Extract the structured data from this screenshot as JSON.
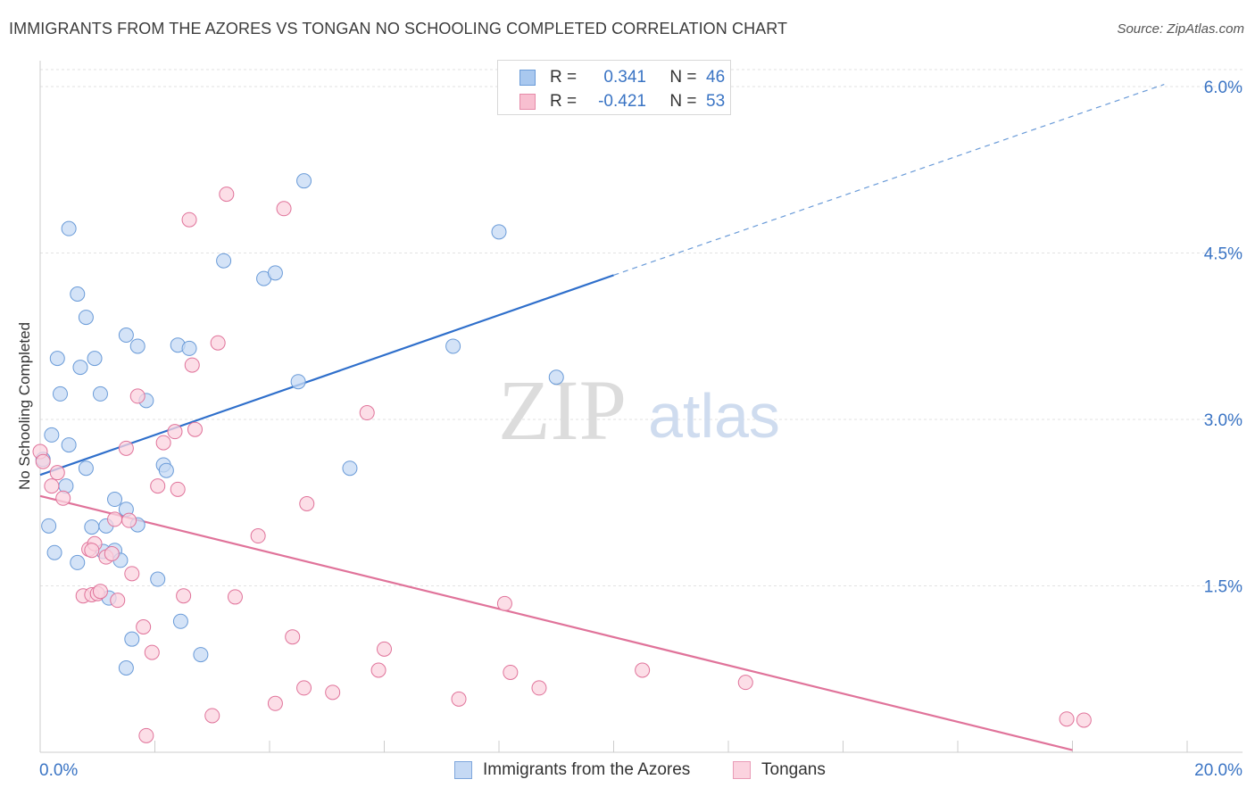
{
  "title": "IMMIGRANTS FROM THE AZORES VS TONGAN NO SCHOOLING COMPLETED CORRELATION CHART",
  "source": "Source: ZipAtlas.com",
  "watermark": {
    "zip": "ZIP",
    "atlas": "atlas"
  },
  "legend": {
    "series": [
      {
        "r_label": "R =",
        "r_value": "0.341",
        "n_label": "N =",
        "n_value": "46",
        "color": "#a9c8ef",
        "border": "#6a9bd8"
      },
      {
        "r_label": "R =",
        "r_value": "-0.421",
        "n_label": "N =",
        "n_value": "53",
        "color": "#f8bfd0",
        "border": "#e68aa8"
      }
    ]
  },
  "bottom_legend": [
    {
      "label": "Immigrants from the Azores",
      "color": "#c5d9f4",
      "border": "#7ea6dc"
    },
    {
      "label": "Tongans",
      "color": "#fbd3df",
      "border": "#e99bb6"
    }
  ],
  "chart_data": {
    "type": "scatter",
    "title": "IMMIGRANTS FROM THE AZORES VS TONGAN NO SCHOOLING COMPLETED CORRELATION CHART",
    "xlabel": "",
    "ylabel": "No Schooling Completed",
    "xlim": [
      0,
      20
    ],
    "ylim": [
      0,
      6.3
    ],
    "x_tick_labels": [
      "0.0%",
      "20.0%"
    ],
    "y_ticks": [
      1.5,
      3.0,
      4.5,
      6.0
    ],
    "y_tick_labels": [
      "1.5%",
      "3.0%",
      "4.5%",
      "6.0%"
    ],
    "series": [
      {
        "name": "Immigrants from the Azores",
        "color": "#6a9bd8",
        "fill": "#c5d9f4",
        "trend": {
          "x": [
            0.0,
            10.0
          ],
          "y": [
            2.5,
            4.3
          ],
          "extend_to": [
            19.6,
            6.02
          ]
        },
        "points": [
          [
            0.5,
            4.72
          ],
          [
            0.65,
            4.13
          ],
          [
            0.8,
            3.92
          ],
          [
            0.3,
            3.55
          ],
          [
            0.7,
            3.47
          ],
          [
            0.95,
            3.55
          ],
          [
            1.05,
            3.23
          ],
          [
            0.35,
            3.23
          ],
          [
            1.5,
            3.76
          ],
          [
            1.7,
            3.66
          ],
          [
            1.85,
            3.17
          ],
          [
            2.4,
            3.67
          ],
          [
            2.6,
            3.64
          ],
          [
            3.2,
            4.43
          ],
          [
            3.9,
            4.27
          ],
          [
            4.1,
            4.32
          ],
          [
            4.6,
            5.15
          ],
          [
            4.5,
            3.34
          ],
          [
            0.2,
            2.86
          ],
          [
            0.5,
            2.77
          ],
          [
            0.05,
            2.64
          ],
          [
            0.8,
            2.56
          ],
          [
            0.45,
            2.4
          ],
          [
            2.15,
            2.59
          ],
          [
            2.2,
            2.54
          ],
          [
            5.4,
            2.56
          ],
          [
            7.2,
            3.66
          ],
          [
            8.0,
            4.69
          ],
          [
            9.0,
            3.38
          ],
          [
            0.15,
            2.04
          ],
          [
            0.25,
            1.8
          ],
          [
            1.3,
            2.28
          ],
          [
            1.5,
            2.19
          ],
          [
            1.7,
            2.05
          ],
          [
            1.1,
            1.81
          ],
          [
            0.9,
            2.03
          ],
          [
            1.3,
            1.82
          ],
          [
            1.4,
            1.73
          ],
          [
            0.65,
            1.71
          ],
          [
            1.2,
            1.39
          ],
          [
            2.05,
            1.56
          ],
          [
            2.45,
            1.18
          ],
          [
            1.6,
            1.02
          ],
          [
            2.8,
            0.88
          ],
          [
            1.5,
            0.76
          ],
          [
            1.15,
            2.04
          ]
        ]
      },
      {
        "name": "Tongans",
        "color": "#e0739a",
        "fill": "#fbd3df",
        "trend": {
          "x": [
            0.0,
            18.0
          ],
          "y": [
            2.31,
            0.02
          ]
        },
        "points": [
          [
            3.25,
            5.03
          ],
          [
            4.25,
            4.9
          ],
          [
            2.6,
            4.8
          ],
          [
            3.1,
            3.69
          ],
          [
            2.65,
            3.49
          ],
          [
            1.7,
            3.21
          ],
          [
            5.7,
            3.06
          ],
          [
            1.5,
            2.74
          ],
          [
            2.15,
            2.79
          ],
          [
            2.35,
            2.89
          ],
          [
            2.7,
            2.91
          ],
          [
            0.0,
            2.71
          ],
          [
            0.05,
            2.62
          ],
          [
            0.3,
            2.52
          ],
          [
            0.2,
            2.4
          ],
          [
            0.4,
            2.29
          ],
          [
            2.05,
            2.4
          ],
          [
            2.4,
            2.37
          ],
          [
            4.65,
            2.24
          ],
          [
            1.3,
            2.1
          ],
          [
            1.55,
            2.09
          ],
          [
            3.8,
            1.95
          ],
          [
            0.85,
            1.83
          ],
          [
            0.95,
            1.88
          ],
          [
            0.9,
            1.82
          ],
          [
            1.15,
            1.76
          ],
          [
            1.25,
            1.79
          ],
          [
            1.6,
            1.61
          ],
          [
            0.75,
            1.41
          ],
          [
            0.9,
            1.42
          ],
          [
            1.0,
            1.43
          ],
          [
            1.05,
            1.45
          ],
          [
            1.35,
            1.37
          ],
          [
            2.5,
            1.41
          ],
          [
            3.4,
            1.4
          ],
          [
            8.1,
            1.34
          ],
          [
            1.8,
            1.13
          ],
          [
            4.4,
            1.04
          ],
          [
            6.0,
            0.93
          ],
          [
            1.95,
            0.9
          ],
          [
            5.9,
            0.74
          ],
          [
            8.2,
            0.72
          ],
          [
            10.5,
            0.74
          ],
          [
            4.6,
            0.58
          ],
          [
            5.1,
            0.54
          ],
          [
            7.3,
            0.48
          ],
          [
            8.7,
            0.58
          ],
          [
            12.3,
            0.63
          ],
          [
            4.1,
            0.44
          ],
          [
            3.0,
            0.33
          ],
          [
            1.85,
            0.15
          ],
          [
            17.9,
            0.3
          ],
          [
            18.2,
            0.29
          ]
        ]
      }
    ]
  }
}
